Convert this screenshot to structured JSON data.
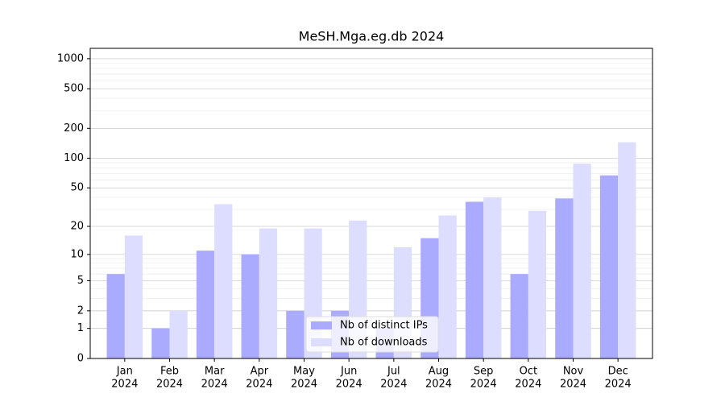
{
  "chart_data": {
    "type": "bar",
    "title": "MeSH.Mga.eg.db 2024",
    "categories": [
      [
        "Jan",
        "2024"
      ],
      [
        "Feb",
        "2024"
      ],
      [
        "Mar",
        "2024"
      ],
      [
        "Apr",
        "2024"
      ],
      [
        "May",
        "2024"
      ],
      [
        "Jun",
        "2024"
      ],
      [
        "Jul",
        "2024"
      ],
      [
        "Aug",
        "2024"
      ],
      [
        "Sep",
        "2024"
      ],
      [
        "Oct",
        "2024"
      ],
      [
        "Nov",
        "2024"
      ],
      [
        "Dec",
        "2024"
      ]
    ],
    "series": [
      {
        "name": "Nb of distinct IPs",
        "color": "#aaaaff",
        "values": [
          6,
          1,
          11,
          10,
          2,
          2,
          1,
          15,
          36,
          6,
          39,
          67
        ]
      },
      {
        "name": "Nb of downloads",
        "color": "#ddddff",
        "values": [
          16,
          2,
          34,
          19,
          19,
          23,
          12,
          26,
          40,
          29,
          88,
          145
        ]
      }
    ],
    "yscale": "log1p",
    "ylim": [
      0,
      1270
    ],
    "yticks": [
      0,
      1,
      2,
      5,
      10,
      20,
      50,
      100,
      200,
      500,
      1000
    ],
    "minor_yticks": [
      3,
      4,
      6,
      7,
      8,
      9,
      30,
      40,
      60,
      70,
      80,
      90,
      300,
      400,
      600,
      700,
      800,
      900
    ],
    "grid": true,
    "legend": "lower center"
  }
}
